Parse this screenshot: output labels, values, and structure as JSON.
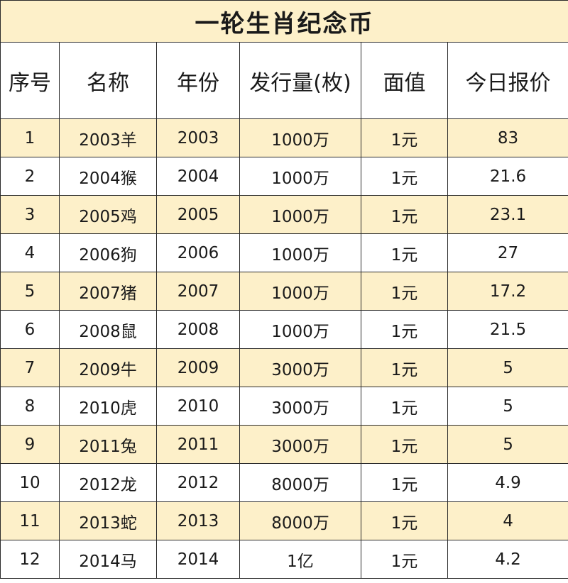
{
  "title": "一轮生肖纪念币",
  "colors": {
    "title_bg": "#fdf0c9",
    "odd_row_bg": "#fdf0c9",
    "even_row_bg": "#ffffff",
    "border": "#2b2b2b"
  },
  "headers": [
    "序号",
    "名称",
    "年份",
    "发行量(枚)",
    "面值",
    "今日报价"
  ],
  "rows": [
    [
      "1",
      "2003羊",
      "2003",
      "1000万",
      "1元",
      "83"
    ],
    [
      "2",
      "2004猴",
      "2004",
      "1000万",
      "1元",
      "21.6"
    ],
    [
      "3",
      "2005鸡",
      "2005",
      "1000万",
      "1元",
      "23.1"
    ],
    [
      "4",
      "2006狗",
      "2006",
      "1000万",
      "1元",
      "27"
    ],
    [
      "5",
      "2007猪",
      "2007",
      "1000万",
      "1元",
      "17.2"
    ],
    [
      "6",
      "2008鼠",
      "2008",
      "1000万",
      "1元",
      "21.5"
    ],
    [
      "7",
      "2009牛",
      "2009",
      "3000万",
      "1元",
      "5"
    ],
    [
      "8",
      "2010虎",
      "2010",
      "3000万",
      "1元",
      "5"
    ],
    [
      "9",
      "2011兔",
      "2011",
      "3000万",
      "1元",
      "5"
    ],
    [
      "10",
      "2012龙",
      "2012",
      "8000万",
      "1元",
      "4.9"
    ],
    [
      "11",
      "2013蛇",
      "2013",
      "8000万",
      "1元",
      "4"
    ],
    [
      "12",
      "2014马",
      "2014",
      "1亿",
      "1元",
      "4.2"
    ]
  ]
}
